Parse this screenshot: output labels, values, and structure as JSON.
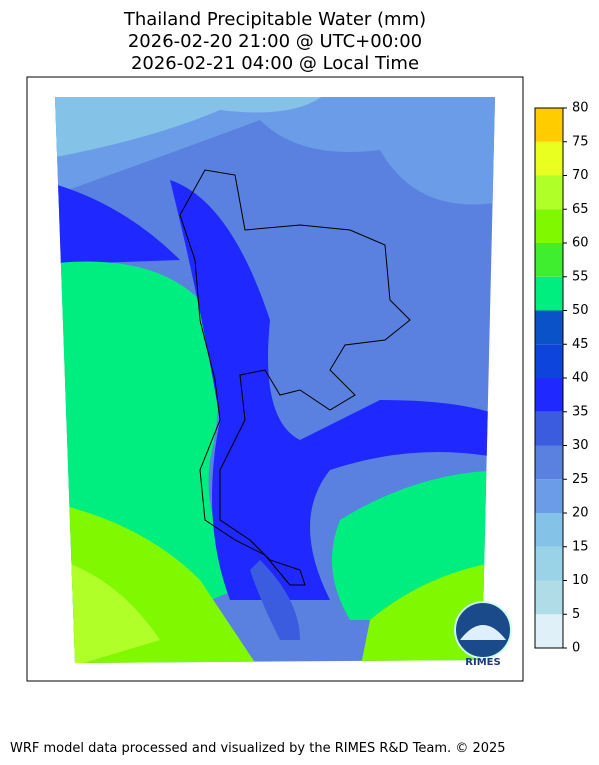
{
  "title": [
    "Thailand Precipitable Water (mm)",
    "2026-02-20 21:00 @ UTC+00:00",
    "2026-02-21 04:00 @ Local Time"
  ],
  "colorbar": {
    "ticks": [
      0,
      5,
      10,
      15,
      20,
      25,
      30,
      35,
      40,
      45,
      50,
      55,
      60,
      65,
      70,
      75,
      80
    ],
    "colors": [
      "#e0f0f8",
      "#b0dce8",
      "#9ad2e8",
      "#84c2e8",
      "#6a9ce8",
      "#5a80e0",
      "#3c5ce0",
      "#1e28ff",
      "#0c44dc",
      "#0a52c8",
      "#00ee80",
      "#40ee30",
      "#80f800",
      "#b0ff28",
      "#e8ff20",
      "#ffcc00"
    ]
  },
  "logo": {
    "label": "RIMES"
  },
  "footer": "WRF model data processed and visualized by the RIMES R&D Team. © 2025"
}
